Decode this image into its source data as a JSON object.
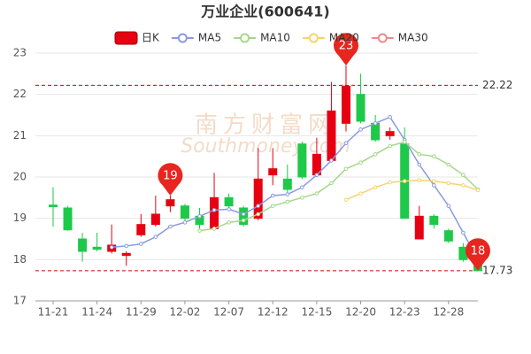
{
  "chart_data": {
    "type": "candlestick",
    "title": "万业企业(600641)",
    "categories": [
      "11-21",
      null,
      null,
      "11-24",
      null,
      null,
      "11-29",
      null,
      null,
      "12-02",
      null,
      null,
      "12-07",
      null,
      null,
      "12-12",
      null,
      null,
      "12-15",
      null,
      null,
      "12-20",
      null,
      null,
      "12-23",
      null,
      null,
      "12-28",
      null,
      null
    ],
    "ohlc": {
      "name": "日K",
      "up_color": "#e60012",
      "down_color": "#1ec94a",
      "open": [
        19.32,
        19.25,
        18.5,
        18.3,
        18.2,
        18.1,
        18.6,
        18.85,
        19.3,
        19.3,
        19.05,
        18.75,
        19.5,
        19.25,
        19.0,
        20.05,
        19.95,
        20.8,
        20.05,
        20.4,
        21.3,
        22.0,
        21.3,
        21.0,
        20.8,
        18.5,
        19.05,
        18.7,
        18.3,
        17.9
      ],
      "high": [
        19.75,
        19.3,
        18.65,
        18.65,
        18.85,
        18.2,
        19.1,
        19.55,
        19.55,
        19.35,
        19.25,
        20.1,
        19.6,
        19.3,
        20.7,
        20.7,
        20.3,
        20.85,
        20.95,
        22.3,
        22.7,
        22.5,
        21.5,
        21.2,
        21.2,
        19.3,
        19.1,
        18.75,
        18.4,
        18.0
      ],
      "low": [
        18.8,
        18.7,
        17.95,
        18.2,
        18.15,
        17.85,
        18.55,
        18.8,
        19.15,
        18.95,
        18.75,
        18.7,
        19.2,
        18.8,
        18.95,
        19.8,
        19.6,
        19.95,
        20.0,
        20.35,
        21.1,
        21.3,
        20.85,
        20.9,
        19.0,
        18.5,
        18.75,
        18.4,
        17.95,
        17.73
      ],
      "close": [
        19.28,
        18.72,
        18.2,
        18.25,
        18.35,
        18.15,
        18.85,
        19.1,
        19.45,
        19.0,
        18.85,
        19.5,
        19.3,
        18.85,
        19.95,
        20.2,
        19.7,
        20.0,
        20.55,
        21.6,
        22.2,
        21.35,
        20.9,
        21.1,
        19.0,
        19.05,
        18.85,
        18.45,
        18.0,
        17.73
      ]
    },
    "series": [
      {
        "name": "MA5",
        "color": "#8b9ae0",
        "values": [
          null,
          null,
          null,
          null,
          18.3,
          18.33,
          18.38,
          18.55,
          18.8,
          18.9,
          19.05,
          19.2,
          19.22,
          19.1,
          19.3,
          19.55,
          19.58,
          19.75,
          20.05,
          20.4,
          20.82,
          21.15,
          21.3,
          21.45,
          20.9,
          20.3,
          19.8,
          19.3,
          18.65,
          18.0
        ]
      },
      {
        "name": "MA10",
        "color": "#a3d88a",
        "values": [
          null,
          null,
          null,
          null,
          null,
          null,
          null,
          null,
          null,
          null,
          18.7,
          18.75,
          18.9,
          18.95,
          19.1,
          19.3,
          19.4,
          19.5,
          19.6,
          19.85,
          20.2,
          20.35,
          20.55,
          20.75,
          20.85,
          20.55,
          20.5,
          20.3,
          20.05,
          19.7
        ]
      },
      {
        "name": "MA20",
        "color": "#f5d36b",
        "values": [
          null,
          null,
          null,
          null,
          null,
          null,
          null,
          null,
          null,
          null,
          null,
          null,
          null,
          null,
          null,
          null,
          null,
          null,
          null,
          null,
          19.45,
          19.6,
          19.75,
          19.87,
          19.9,
          19.92,
          19.9,
          19.85,
          19.8,
          19.68
        ]
      },
      {
        "name": "MA30",
        "color": "#ef8a8a",
        "values": [
          null,
          null,
          null,
          null,
          null,
          null,
          null,
          null,
          null,
          null,
          null,
          null,
          null,
          null,
          null,
          null,
          null,
          null,
          null,
          null,
          null,
          null,
          null,
          null,
          null,
          null,
          null,
          null,
          null,
          null
        ]
      }
    ],
    "ylim": [
      17,
      23
    ],
    "yticks": [
      17,
      18,
      19,
      20,
      21,
      22,
      23
    ],
    "grid": true,
    "ref_lines": [
      {
        "value": 22.22,
        "label": "22.22"
      },
      {
        "value": 17.73,
        "label": "17.73"
      }
    ],
    "pins": [
      "19",
      "23",
      "18"
    ],
    "watermark": [
      "南方财富网",
      "Southmoney.com"
    ]
  }
}
